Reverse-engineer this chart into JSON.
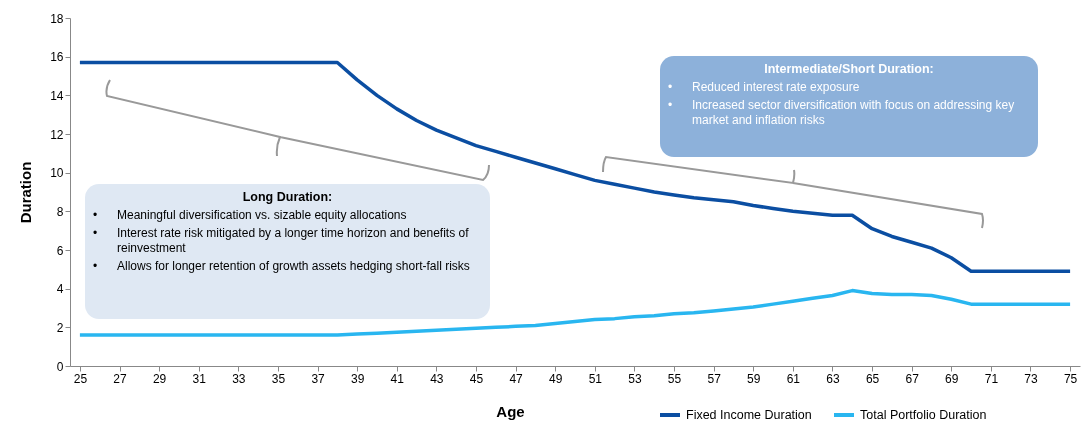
{
  "chart_data": {
    "type": "line",
    "xlabel": "Age",
    "ylabel": "Duration",
    "x": [
      25,
      38,
      39,
      40,
      41,
      42,
      43,
      44,
      45,
      46,
      47,
      48,
      49,
      50,
      51,
      52,
      53,
      54,
      55,
      56,
      57,
      58,
      59,
      60,
      61,
      62,
      63,
      64,
      65,
      66,
      67,
      68,
      69,
      70,
      75
    ],
    "series": [
      {
        "name": "Fixed Income Duration",
        "color": "#0b4ea2",
        "values": [
          15.7,
          15.7,
          14.8,
          14.0,
          13.3,
          12.7,
          12.2,
          11.8,
          11.4,
          11.1,
          10.8,
          10.5,
          10.2,
          9.9,
          9.6,
          9.4,
          9.2,
          9.0,
          8.85,
          8.7,
          8.6,
          8.5,
          8.3,
          8.15,
          8.0,
          7.9,
          7.8,
          7.8,
          7.1,
          6.7,
          6.4,
          6.1,
          5.6,
          4.9,
          4.9
        ]
      },
      {
        "name": "Total Portfolio Duration",
        "color": "#29b6f0",
        "values": [
          1.6,
          1.6,
          1.65,
          1.7,
          1.75,
          1.8,
          1.85,
          1.9,
          1.95,
          2.0,
          2.05,
          2.1,
          2.2,
          2.3,
          2.4,
          2.45,
          2.55,
          2.6,
          2.7,
          2.75,
          2.85,
          2.95,
          3.05,
          3.2,
          3.35,
          3.5,
          3.65,
          3.9,
          3.75,
          3.7,
          3.7,
          3.65,
          3.45,
          3.2,
          3.2
        ]
      }
    ],
    "xlim": [
      24.5,
      75.5
    ],
    "xticks": [
      25,
      27,
      29,
      31,
      33,
      35,
      37,
      39,
      41,
      43,
      45,
      47,
      49,
      51,
      53,
      55,
      57,
      59,
      61,
      63,
      65,
      67,
      69,
      71,
      73,
      75
    ],
    "ylim": [
      0,
      18
    ],
    "yticks": [
      0,
      2,
      4,
      6,
      8,
      10,
      12,
      14,
      16,
      18
    ],
    "legend": "bottom right",
    "annotations": [
      "Long Duration:",
      "•\tMeaningful diversification vs. sizable equity allocations",
      "•\tInterest rate risk mitigated by a longer time horizon and benefits of reinvestment",
      "•\tAllows for longer retention of growth assets hedging short-fall risks",
      "Intermediate/Short Duration:",
      "•\tReduced interest rate exposure",
      "•\tIncreased sector diversification with focus on addressing key market and inflation risks"
    ]
  }
}
